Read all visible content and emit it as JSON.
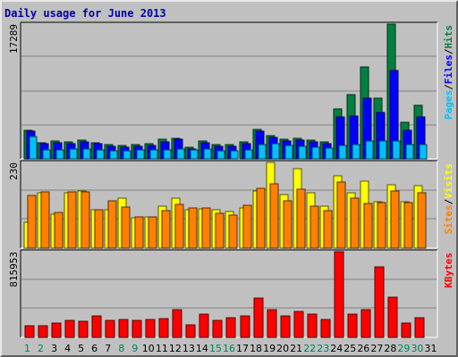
{
  "title": "Daily usage for June 2013",
  "colors": {
    "hits": "#008040",
    "files": "#0000ff",
    "pages": "#00c0ff",
    "visits": "#ffff00",
    "sites": "#ff8000",
    "kbytes": "#ff0000",
    "weekend_label": "#00805c",
    "weekday_label": "#000000",
    "background": "#c0c0c0",
    "title": "#0000a8"
  },
  "chart_data": [
    {
      "type": "bar",
      "title": "Daily usage for June 2013",
      "categories": [
        "1",
        "2",
        "3",
        "4",
        "5",
        "6",
        "7",
        "8",
        "9",
        "10",
        "11",
        "12",
        "13",
        "14",
        "15",
        "16",
        "17",
        "18",
        "19",
        "20",
        "21",
        "22",
        "23",
        "24",
        "25",
        "26",
        "27",
        "28",
        "29",
        "30",
        "31"
      ],
      "weekend_days": [
        "1",
        "2",
        "8",
        "9",
        "15",
        "16",
        "22",
        "23",
        "29",
        "30"
      ],
      "ymax_label": "17289",
      "ylim": [
        0,
        17289
      ],
      "grid": true,
      "legend": [
        "Pages",
        "/",
        "Files",
        "/",
        "Hits"
      ],
      "series": [
        {
          "name": "Hits",
          "values": [
            3700,
            2100,
            2300,
            2200,
            2400,
            2100,
            1800,
            1700,
            1800,
            1900,
            2500,
            2600,
            1500,
            2300,
            1800,
            1800,
            2200,
            3800,
            3000,
            2500,
            2600,
            2400,
            2200,
            6400,
            8300,
            11800,
            7800,
            17289,
            4700,
            6900,
            0
          ]
        },
        {
          "name": "Files",
          "values": [
            3600,
            1900,
            2100,
            2000,
            2200,
            1900,
            1600,
            1500,
            1600,
            1700,
            2200,
            2500,
            1300,
            2100,
            1600,
            1600,
            2000,
            3600,
            2800,
            2300,
            2400,
            2200,
            2000,
            5400,
            5500,
            7800,
            6000,
            11300,
            3700,
            5400,
            0
          ]
        },
        {
          "name": "Pages",
          "values": [
            2900,
            1200,
            1200,
            1300,
            1300,
            1100,
            1000,
            1000,
            1100,
            1100,
            1200,
            1300,
            1100,
            1300,
            1000,
            1000,
            1200,
            1800,
            1900,
            1700,
            1600,
            1500,
            1400,
            1700,
            1800,
            2300,
            2300,
            2300,
            1800,
            1800,
            0
          ]
        }
      ]
    },
    {
      "type": "bar",
      "categories": [
        "1",
        "2",
        "3",
        "4",
        "5",
        "6",
        "7",
        "8",
        "9",
        "10",
        "11",
        "12",
        "13",
        "14",
        "15",
        "16",
        "17",
        "18",
        "19",
        "20",
        "21",
        "22",
        "23",
        "24",
        "25",
        "26",
        "27",
        "28",
        "29",
        "30",
        "31"
      ],
      "ymax_label": "230",
      "ylim": [
        0,
        230
      ],
      "grid": true,
      "legend": [
        "Sites",
        "/",
        "Visits"
      ],
      "series": [
        {
          "name": "Visits",
          "values": [
            70,
            148,
            90,
            148,
            153,
            103,
            103,
            133,
            82,
            84,
            113,
            133,
            103,
            106,
            103,
            98,
            108,
            153,
            230,
            143,
            213,
            148,
            112,
            193,
            148,
            180,
            124,
            170,
            124,
            168,
            0
          ]
        },
        {
          "name": "Sites",
          "values": [
            142,
            150,
            97,
            150,
            150,
            104,
            128,
            110,
            84,
            85,
            100,
            118,
            108,
            107,
            93,
            88,
            115,
            160,
            172,
            128,
            158,
            113,
            100,
            178,
            133,
            120,
            123,
            153,
            123,
            148,
            0
          ]
        }
      ]
    },
    {
      "type": "bar",
      "categories": [
        "1",
        "2",
        "3",
        "4",
        "5",
        "6",
        "7",
        "8",
        "9",
        "10",
        "11",
        "12",
        "13",
        "14",
        "15",
        "16",
        "17",
        "18",
        "19",
        "20",
        "21",
        "22",
        "23",
        "24",
        "25",
        "26",
        "27",
        "28",
        "29",
        "30",
        "31"
      ],
      "ymax_label": "815953",
      "ylim": [
        0,
        815953
      ],
      "grid": true,
      "legend": [
        "KBytes"
      ],
      "series": [
        {
          "name": "KBytes",
          "values": [
            110000,
            110000,
            140000,
            160000,
            150000,
            200000,
            160000,
            170000,
            160000,
            170000,
            180000,
            260000,
            120000,
            220000,
            160000,
            190000,
            200000,
            370000,
            260000,
            200000,
            250000,
            220000,
            170000,
            815953,
            220000,
            260000,
            670000,
            380000,
            140000,
            190000,
            0
          ]
        }
      ]
    }
  ]
}
